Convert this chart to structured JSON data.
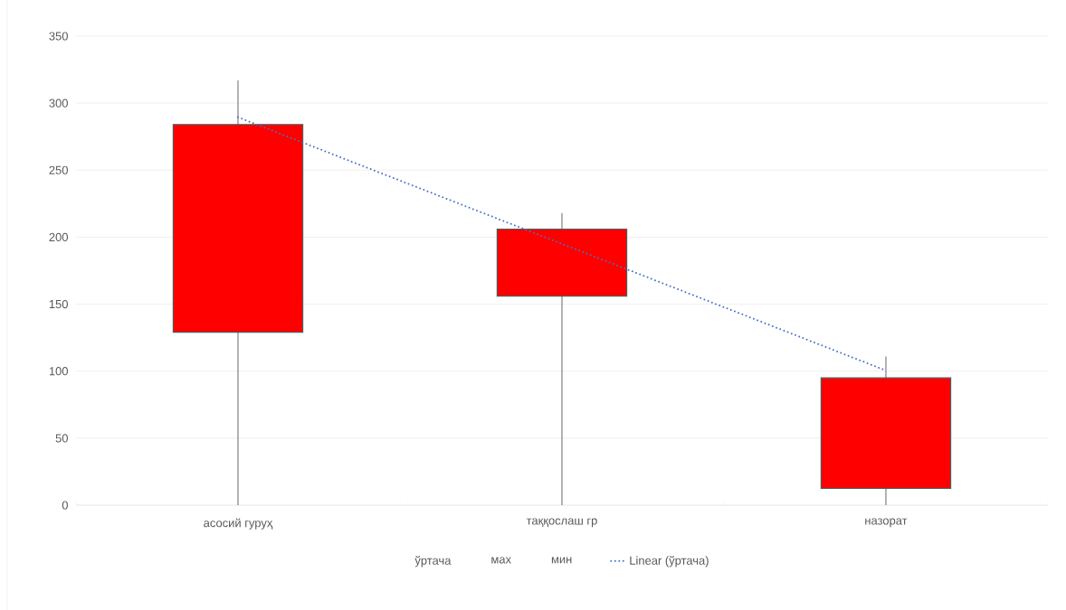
{
  "chart_data": {
    "type": "candlestick",
    "categories": [
      "асосий гуруҳ",
      "таққослаш гр",
      "назорат"
    ],
    "ohlc": [
      [
        284,
        317,
        0,
        129
      ],
      [
        206,
        218,
        0,
        156
      ],
      [
        95,
        111,
        0,
        12.5
      ]
    ],
    "color": "#ff0000",
    "annotations": [
      "ўртача",
      "мах",
      "мин"
    ],
    "series": [
      {
        "name": "Linear (ўртача)",
        "type": "line",
        "line_style": "dotted",
        "color": "#4472c4",
        "values": [
          289.5,
          195,
          100.5
        ]
      }
    ],
    "ylim": [
      0,
      350
    ],
    "yticks": [
      0,
      50,
      100,
      150,
      200,
      250,
      300,
      350
    ],
    "grid": "y",
    "legend": "bottom",
    "marker": "none"
  }
}
